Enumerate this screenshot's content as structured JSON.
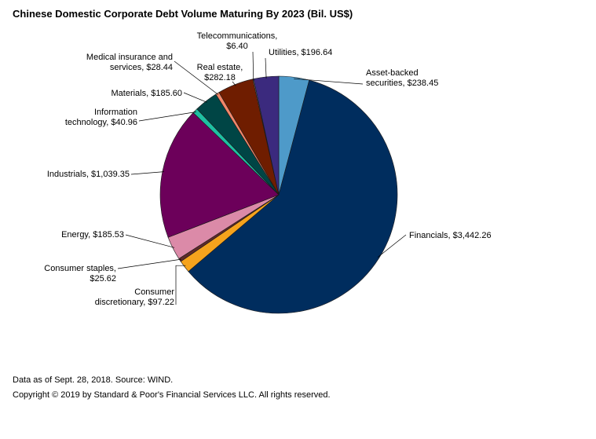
{
  "title": "Chinese Domestic Corporate Debt Volume Maturing By 2023 (Bil. US$)",
  "footer": {
    "source": "Data as of Sept. 28, 2018. Source: WIND.",
    "copyright": "Copyright © 2019 by Standard & Poor's Financial Services LLC. All rights reserved."
  },
  "chart_data": {
    "type": "pie",
    "title": "Chinese Domestic Corporate Debt Volume Maturing By 2023 (Bil. US$)",
    "slices": [
      {
        "label": "Asset-backed securities",
        "value": 238.45,
        "color": "#4e9ac9",
        "label_lines": [
          "Asset-backed",
          "securities, $238.45"
        ]
      },
      {
        "label": "Financials",
        "value": 3442.26,
        "color": "#002d5e",
        "label_lines": [
          "Financials, $3,442.26"
        ]
      },
      {
        "label": "Consumer discretionary",
        "value": 97.22,
        "color": "#f5a31d",
        "label_lines": [
          "Consumer",
          "discretionary, $97.22"
        ]
      },
      {
        "label": "Consumer staples",
        "value": 25.62,
        "color": "#5e2a2a",
        "label_lines": [
          "Consumer staples,",
          "$25.62"
        ]
      },
      {
        "label": "Energy",
        "value": 185.53,
        "color": "#db8aa8",
        "label_lines": [
          "Energy, $185.53"
        ]
      },
      {
        "label": "Industrials",
        "value": 1039.35,
        "color": "#6c005a",
        "label_lines": [
          "Industrials, $1,039.35"
        ]
      },
      {
        "label": "Information technology",
        "value": 40.96,
        "color": "#1fbfa2",
        "label_lines": [
          "Information",
          "technology, $40.96"
        ]
      },
      {
        "label": "Materials",
        "value": 185.6,
        "color": "#004545",
        "label_lines": [
          "Materials, $185.60"
        ]
      },
      {
        "label": "Medical insurance and services",
        "value": 28.44,
        "color": "#f2876a",
        "label_lines": [
          "Medical insurance and",
          "services, $28.44"
        ]
      },
      {
        "label": "Real estate",
        "value": 282.18,
        "color": "#6f1d00",
        "label_lines": [
          "Real estate,",
          "$282.18"
        ]
      },
      {
        "label": "Telecommunications",
        "value": 6.4,
        "color": "#9a9a9a",
        "label_lines": [
          "Telecommunications,",
          "$6.40"
        ]
      },
      {
        "label": "Utilities",
        "value": 196.64,
        "color": "#3b2a7e",
        "label_lines": [
          "Utilities, $196.64"
        ]
      }
    ],
    "start_angle": "12 o'clock",
    "direction": "clockwise"
  }
}
